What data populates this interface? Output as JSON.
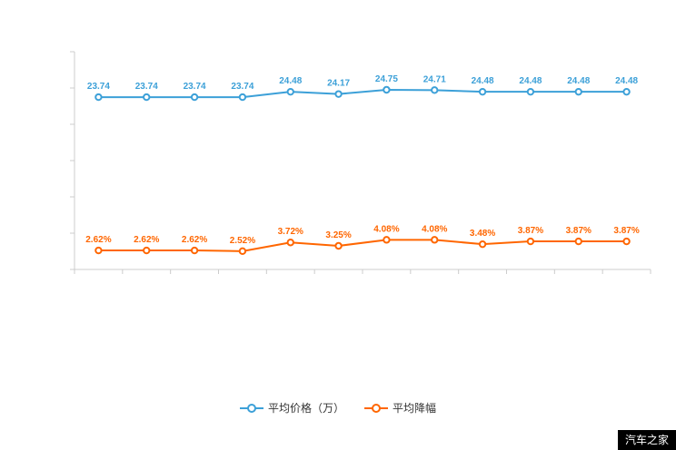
{
  "chart_data": {
    "type": "line",
    "title": "",
    "xlabel": "",
    "ylabel": "",
    "ylim": [
      0,
      30
    ],
    "y_tick_interval": 5,
    "grid": false,
    "legend_position": "bottom",
    "point_count": 12,
    "series": [
      {
        "name": "平均价格（万）",
        "color": "#3ca0d8",
        "values": [
          23.74,
          23.74,
          23.74,
          23.74,
          24.48,
          24.17,
          24.75,
          24.71,
          24.48,
          24.48,
          24.48,
          24.48
        ],
        "labels": [
          "23.74",
          "23.74",
          "23.74",
          "23.74",
          "24.48",
          "24.17",
          "24.75",
          "24.71",
          "24.48",
          "24.48",
          "24.48",
          "24.48"
        ]
      },
      {
        "name": "平均降幅",
        "color": "#ff6600",
        "values": [
          2.62,
          2.62,
          2.62,
          2.52,
          3.72,
          3.25,
          4.08,
          4.08,
          3.48,
          3.87,
          3.87,
          3.87
        ],
        "labels": [
          "2.62%",
          "2.62%",
          "2.62%",
          "2.52%",
          "3.72%",
          "3.25%",
          "4.08%",
          "4.08%",
          "3.48%",
          "3.87%",
          "3.87%",
          "3.87%"
        ]
      }
    ],
    "axis_color": "#cccccc"
  },
  "watermark": {
    "text": "汽车之家",
    "background": "#000000",
    "color": "#ffffff"
  }
}
